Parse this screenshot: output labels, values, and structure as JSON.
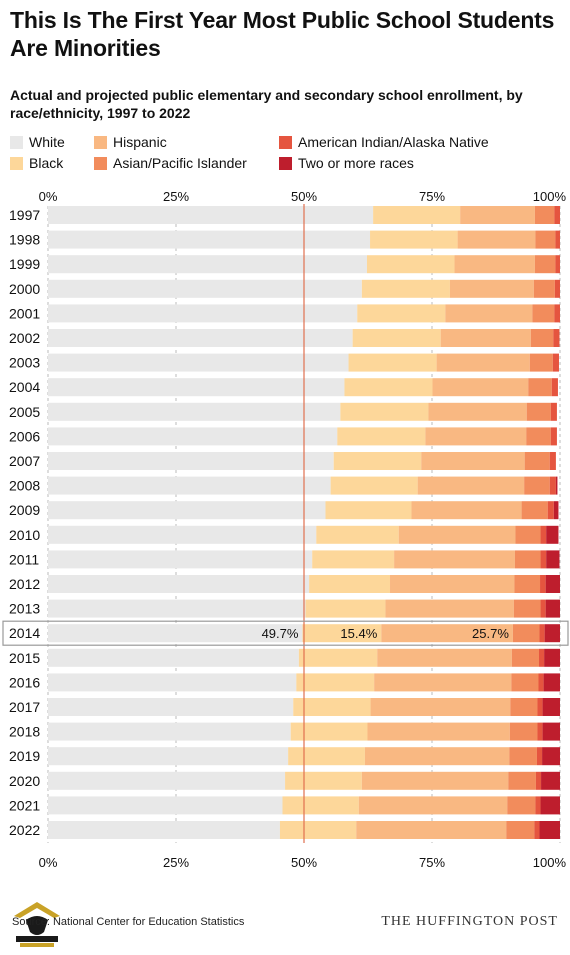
{
  "title": "This Is The First Year Most Public School Students Are Minorities",
  "subtitle": "Actual and projected public elementary and secondary school enrollment, by race/ethnicity, 1997 to 2022",
  "source": "Source: National Center for Education Statistics",
  "brand": "THE HUFFINGTON POST",
  "colors": {
    "White": "#e8e8e8",
    "Black": "#fdd79a",
    "Hispanic": "#f9b882",
    "Asian/Pacific Islander": "#f28c5c",
    "American Indian/Alaska Native": "#e5553f",
    "Two or more races": "#be1e2d",
    "fifty_line": "#e0704f",
    "highlight_border": "#999999",
    "grid": "#bbbbbb"
  },
  "chart_data": {
    "type": "bar",
    "orientation": "horizontal",
    "stacked": "percent",
    "xlim": [
      0,
      100
    ],
    "x_ticks": [
      "0%",
      "25%",
      "50%",
      "75%",
      "100%"
    ],
    "x_tick_values": [
      0,
      25,
      50,
      75,
      100
    ],
    "reference_line": 50,
    "grid": true,
    "legend_position": "top",
    "categories": [
      "1997",
      "1998",
      "1999",
      "2000",
      "2001",
      "2002",
      "2003",
      "2004",
      "2005",
      "2006",
      "2007",
      "2008",
      "2009",
      "2010",
      "2011",
      "2012",
      "2013",
      "2014",
      "2015",
      "2016",
      "2017",
      "2018",
      "2019",
      "2020",
      "2021",
      "2022"
    ],
    "highlight": {
      "category": "2014",
      "labels": [
        {
          "series": "White",
          "text": "49.7%"
        },
        {
          "series": "Black",
          "text": "15.4%"
        },
        {
          "series": "Hispanic",
          "text": "25.7%"
        }
      ]
    },
    "series": [
      {
        "name": "White",
        "values": [
          63.5,
          62.9,
          62.3,
          61.3,
          60.4,
          59.5,
          58.7,
          57.9,
          57.1,
          56.5,
          55.8,
          55.2,
          54.2,
          52.4,
          51.6,
          51.0,
          50.3,
          49.7,
          49.0,
          48.5,
          47.9,
          47.4,
          46.9,
          46.3,
          45.8,
          45.3
        ]
      },
      {
        "name": "Black",
        "values": [
          17.0,
          17.1,
          17.1,
          17.2,
          17.2,
          17.2,
          17.2,
          17.2,
          17.2,
          17.2,
          17.1,
          17.0,
          16.8,
          16.1,
          16.0,
          15.8,
          15.6,
          15.4,
          15.3,
          15.2,
          15.1,
          15.0,
          15.0,
          15.0,
          14.9,
          14.9
        ]
      },
      {
        "name": "Hispanic",
        "values": [
          14.6,
          15.2,
          15.7,
          16.4,
          17.0,
          17.6,
          18.2,
          18.7,
          19.2,
          19.7,
          20.2,
          20.8,
          21.5,
          22.8,
          23.6,
          24.3,
          25.1,
          25.7,
          26.3,
          26.8,
          27.3,
          27.8,
          28.2,
          28.6,
          29.0,
          29.3
        ]
      },
      {
        "name": "Asian/Pacific Islander",
        "values": [
          3.8,
          3.9,
          4.0,
          4.1,
          4.3,
          4.4,
          4.5,
          4.6,
          4.7,
          4.8,
          4.9,
          5.0,
          5.1,
          4.9,
          5.0,
          5.0,
          5.2,
          5.2,
          5.3,
          5.3,
          5.3,
          5.4,
          5.4,
          5.4,
          5.5,
          5.5
        ]
      },
      {
        "name": "American Indian/Alaska Native",
        "values": [
          1.1,
          1.1,
          1.2,
          1.2,
          1.2,
          1.2,
          1.2,
          1.2,
          1.2,
          1.2,
          1.2,
          1.2,
          1.2,
          1.1,
          1.1,
          1.1,
          1.0,
          1.0,
          1.0,
          1.0,
          1.0,
          1.0,
          1.0,
          1.0,
          1.0,
          1.0
        ]
      },
      {
        "name": "Two or more races",
        "values": [
          0,
          0,
          0,
          0,
          0,
          0,
          0,
          0,
          0,
          0,
          0,
          0.3,
          0.9,
          2.4,
          2.6,
          2.8,
          2.8,
          3.0,
          3.1,
          3.2,
          3.4,
          3.5,
          3.5,
          3.7,
          3.8,
          4.0
        ]
      }
    ]
  }
}
